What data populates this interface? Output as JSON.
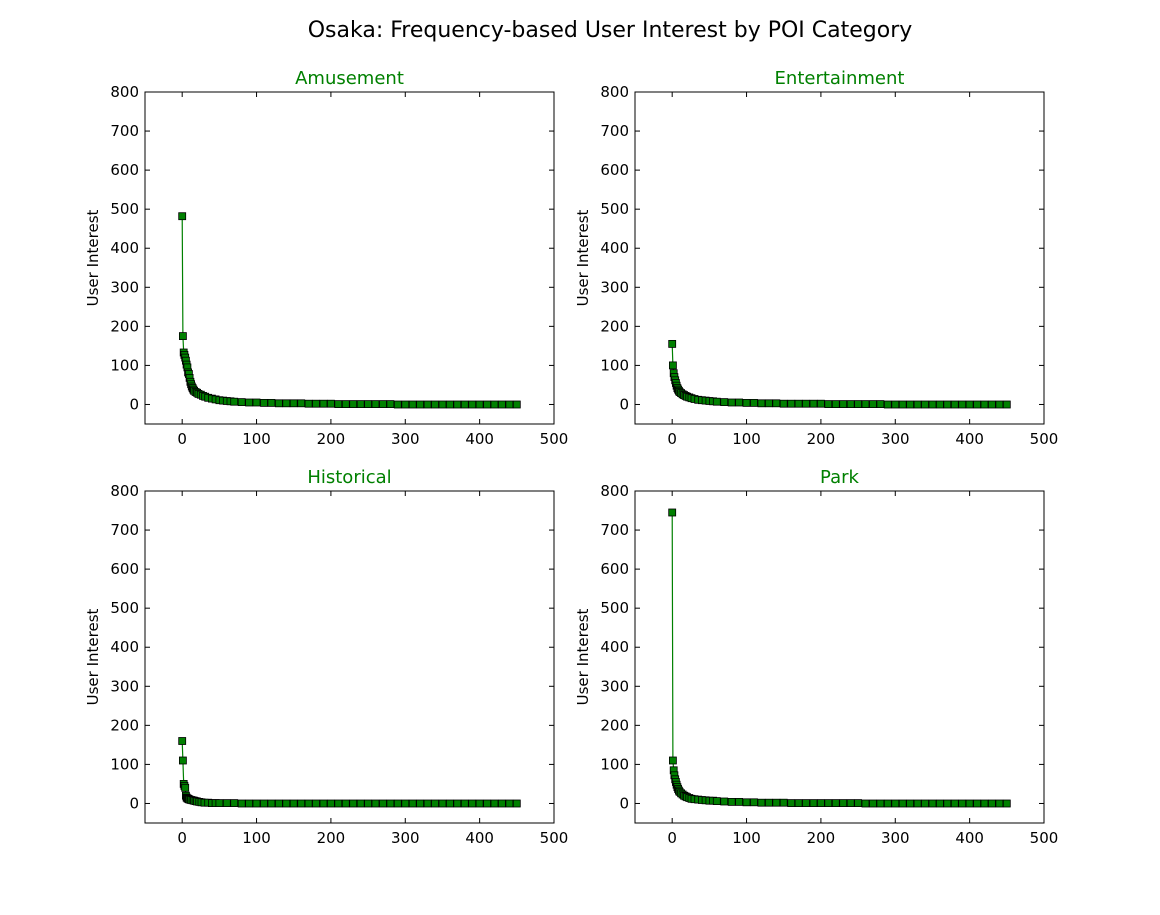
{
  "figure": {
    "title": "Osaka: Frequency-based User Interest by POI Category"
  },
  "colors": {
    "title": "#008000",
    "line": "#008000",
    "marker_fill": "#008000",
    "marker_edge": "#000000",
    "axes": "#000000",
    "background": "#ffffff"
  },
  "chart_data": [
    {
      "type": "line",
      "title": "Amusement",
      "xlabel": "",
      "ylabel": "User Interest",
      "xlim": [
        -50,
        500
      ],
      "ylim": [
        -50,
        800
      ],
      "xticks": [
        0,
        100,
        200,
        300,
        400,
        500
      ],
      "yticks": [
        0,
        100,
        200,
        300,
        400,
        500,
        600,
        700,
        800
      ],
      "marker": "square",
      "grid": false,
      "series": [
        {
          "x": [
            0,
            1,
            2,
            3,
            4,
            5,
            6,
            7,
            8,
            9,
            10,
            11,
            12,
            13,
            14,
            15,
            16,
            18,
            20,
            22,
            25,
            28,
            31,
            35,
            40,
            45,
            50,
            55,
            60,
            65,
            70,
            80,
            90,
            100,
            110,
            120,
            130,
            140,
            150,
            160,
            170,
            180,
            190,
            200,
            210,
            220,
            230,
            240,
            250,
            260,
            270,
            280,
            290,
            300,
            310,
            320,
            330,
            340,
            350,
            360,
            370,
            380,
            390,
            400,
            410,
            420,
            430,
            440,
            450
          ],
          "y": [
            482,
            175,
            133,
            127,
            120,
            112,
            102,
            95,
            82,
            78,
            68,
            58,
            52,
            46,
            42,
            38,
            35,
            32,
            30,
            27,
            25,
            22,
            20,
            17,
            15,
            13,
            11,
            10,
            9,
            8,
            7,
            6,
            5,
            5,
            4,
            4,
            3,
            3,
            3,
            3,
            2,
            2,
            2,
            2,
            1,
            1,
            1,
            1,
            1,
            1,
            1,
            1,
            0,
            0,
            0,
            0,
            0,
            0,
            0,
            0,
            0,
            0,
            0,
            0,
            0,
            0,
            0,
            0,
            0
          ]
        }
      ]
    },
    {
      "type": "line",
      "title": "Entertainment",
      "xlabel": "",
      "ylabel": "User Interest",
      "xlim": [
        -50,
        500
      ],
      "ylim": [
        -50,
        800
      ],
      "xticks": [
        0,
        100,
        200,
        300,
        400,
        500
      ],
      "yticks": [
        0,
        100,
        200,
        300,
        400,
        500,
        600,
        700,
        800
      ],
      "marker": "square",
      "grid": false,
      "series": [
        {
          "x": [
            0,
            1,
            2,
            3,
            4,
            5,
            6,
            7,
            8,
            9,
            10,
            12,
            14,
            16,
            18,
            20,
            23,
            26,
            30,
            35,
            40,
            45,
            50,
            55,
            60,
            70,
            80,
            90,
            100,
            110,
            120,
            130,
            140,
            150,
            160,
            170,
            180,
            190,
            200,
            210,
            220,
            230,
            240,
            250,
            260,
            270,
            280,
            290,
            300,
            310,
            320,
            330,
            340,
            350,
            360,
            370,
            380,
            390,
            400,
            410,
            420,
            430,
            440,
            450
          ],
          "y": [
            155,
            100,
            80,
            70,
            62,
            55,
            48,
            42,
            38,
            35,
            32,
            29,
            26,
            24,
            22,
            20,
            18,
            16,
            14,
            12,
            11,
            10,
            9,
            8,
            7,
            6,
            5,
            5,
            4,
            4,
            3,
            3,
            3,
            2,
            2,
            2,
            2,
            2,
            2,
            1,
            1,
            1,
            1,
            1,
            1,
            1,
            1,
            0,
            0,
            0,
            0,
            0,
            0,
            0,
            0,
            0,
            0,
            0,
            0,
            0,
            0,
            0,
            0,
            0
          ]
        }
      ]
    },
    {
      "type": "line",
      "title": "Historical",
      "xlabel": "",
      "ylabel": "User Interest",
      "xlim": [
        -50,
        500
      ],
      "ylim": [
        -50,
        800
      ],
      "xticks": [
        0,
        100,
        200,
        300,
        400,
        500
      ],
      "yticks": [
        0,
        100,
        200,
        300,
        400,
        500,
        600,
        700,
        800
      ],
      "marker": "square",
      "grid": false,
      "series": [
        {
          "x": [
            0,
            1,
            2,
            3,
            4,
            5,
            6,
            7,
            8,
            9,
            10,
            12,
            14,
            16,
            18,
            20,
            23,
            26,
            30,
            35,
            40,
            45,
            50,
            60,
            70,
            80,
            90,
            100,
            110,
            120,
            130,
            140,
            150,
            160,
            170,
            180,
            190,
            200,
            210,
            220,
            230,
            240,
            250,
            260,
            270,
            280,
            290,
            300,
            310,
            320,
            330,
            340,
            350,
            360,
            370,
            380,
            390,
            400,
            410,
            420,
            430,
            440,
            450
          ],
          "y": [
            160,
            110,
            50,
            45,
            40,
            20,
            15,
            13,
            12,
            11,
            10,
            9,
            8,
            7,
            6,
            5,
            4,
            3,
            2,
            2,
            1,
            1,
            1,
            1,
            1,
            0,
            0,
            0,
            0,
            0,
            0,
            0,
            0,
            0,
            0,
            0,
            0,
            0,
            0,
            0,
            0,
            0,
            0,
            0,
            0,
            0,
            0,
            0,
            0,
            0,
            0,
            0,
            0,
            0,
            0,
            0,
            0,
            0,
            0,
            0,
            0,
            0,
            0
          ]
        }
      ]
    },
    {
      "type": "line",
      "title": "Park",
      "xlabel": "",
      "ylabel": "User Interest",
      "xlim": [
        -50,
        500
      ],
      "ylim": [
        -50,
        800
      ],
      "xticks": [
        0,
        100,
        200,
        300,
        400,
        500
      ],
      "yticks": [
        0,
        100,
        200,
        300,
        400,
        500,
        600,
        700,
        800
      ],
      "marker": "square",
      "grid": false,
      "series": [
        {
          "x": [
            0,
            1,
            2,
            3,
            4,
            5,
            6,
            7,
            8,
            9,
            10,
            12,
            14,
            16,
            18,
            20,
            23,
            26,
            30,
            35,
            40,
            45,
            50,
            55,
            60,
            70,
            80,
            90,
            100,
            110,
            120,
            130,
            140,
            150,
            160,
            170,
            180,
            190,
            200,
            210,
            220,
            230,
            240,
            250,
            260,
            270,
            280,
            290,
            300,
            310,
            320,
            330,
            340,
            350,
            360,
            370,
            380,
            390,
            400,
            410,
            420,
            430,
            440,
            450
          ],
          "y": [
            745,
            110,
            85,
            72,
            62,
            55,
            48,
            42,
            37,
            33,
            30,
            26,
            23,
            20,
            18,
            16,
            14,
            12,
            11,
            10,
            9,
            8,
            7,
            7,
            6,
            5,
            4,
            4,
            3,
            3,
            2,
            2,
            2,
            2,
            1,
            1,
            1,
            1,
            1,
            1,
            1,
            1,
            1,
            1,
            0,
            0,
            0,
            0,
            0,
            0,
            0,
            0,
            0,
            0,
            0,
            0,
            0,
            0,
            0,
            0,
            0,
            0,
            0,
            0
          ]
        }
      ]
    }
  ]
}
